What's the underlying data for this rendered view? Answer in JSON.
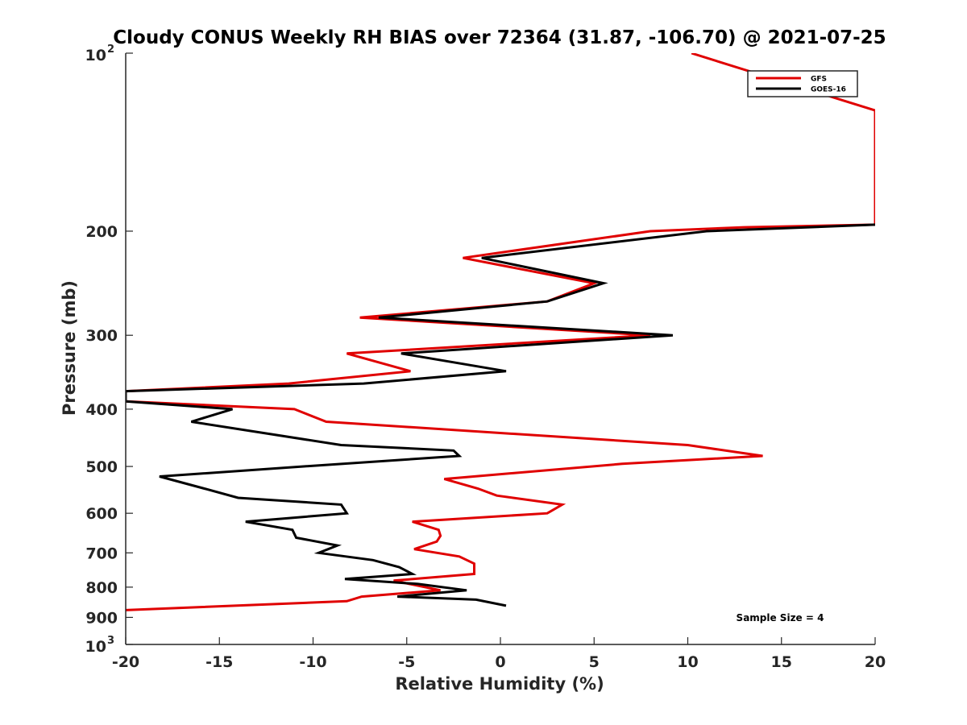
{
  "chart_data": {
    "type": "line",
    "title": "Cloudy CONUS Weekly RH BIAS over 72364 (31.87, -106.70) @ 2021-07-25",
    "xlabel": "Relative Humidity (%)",
    "ylabel": "Pressure (mb)",
    "xlim": [
      -20,
      20
    ],
    "ylim": [
      100,
      1000
    ],
    "y_scale": "log",
    "y_reversed": true,
    "grid": false,
    "legend_position": "top-right",
    "x_ticks": [
      "-20",
      "-15",
      "-10",
      "-5",
      "0",
      "5",
      "10",
      "15",
      "20"
    ],
    "y_ticks": [
      {
        "value": 100,
        "base": "10",
        "exp": "2"
      },
      {
        "value": 200,
        "label": "200"
      },
      {
        "value": 300,
        "label": "300"
      },
      {
        "value": 400,
        "label": "400"
      },
      {
        "value": 500,
        "label": "500"
      },
      {
        "value": 600,
        "label": "600"
      },
      {
        "value": 700,
        "label": "700"
      },
      {
        "value": 800,
        "label": "800"
      },
      {
        "value": 900,
        "label": "900"
      },
      {
        "value": 1000,
        "base": "10",
        "exp": "3"
      }
    ],
    "annotation": "Sample Size = 4",
    "series": [
      {
        "name": "GFS",
        "color": "#e00000",
        "points": [
          [
            10.2,
            100
          ],
          [
            20,
            125
          ],
          [
            20,
            180
          ],
          [
            20,
            195
          ],
          [
            13,
            197
          ],
          [
            8,
            200
          ],
          [
            -2,
            222
          ],
          [
            5,
            245
          ],
          [
            2.5,
            263
          ],
          [
            -7.5,
            280
          ],
          [
            8,
            300
          ],
          [
            -8.2,
            322
          ],
          [
            -4.8,
            345
          ],
          [
            -11.3,
            362
          ],
          [
            -20,
            373
          ],
          [
            -20,
            388
          ],
          [
            -11,
            400
          ],
          [
            -9.3,
            420
          ],
          [
            10,
            460
          ],
          [
            14,
            480
          ],
          [
            6.5,
            495
          ],
          [
            -3,
            525
          ],
          [
            -1.2,
            545
          ],
          [
            -0.2,
            560
          ],
          [
            3.3,
            580
          ],
          [
            2.5,
            600
          ],
          [
            -4.7,
            620
          ],
          [
            -3.3,
            640
          ],
          [
            -3.2,
            655
          ],
          [
            -3.4,
            670
          ],
          [
            -4.6,
            690
          ],
          [
            -2.2,
            710
          ],
          [
            -1.4,
            730
          ],
          [
            -1.4,
            760
          ],
          [
            -5.7,
            780
          ],
          [
            -3.2,
            810
          ],
          [
            -7.4,
            830
          ],
          [
            -8.2,
            845
          ],
          [
            -20,
            875
          ]
        ]
      },
      {
        "name": "GOES-16",
        "color": "#000000",
        "points": [
          [
            20,
            195
          ],
          [
            11,
            200
          ],
          [
            -1,
            222
          ],
          [
            5.5,
            245
          ],
          [
            2.5,
            263
          ],
          [
            -6.5,
            280
          ],
          [
            9.2,
            300
          ],
          [
            -5.3,
            322
          ],
          [
            0.3,
            345
          ],
          [
            -7.3,
            362
          ],
          [
            -20,
            373
          ],
          [
            -20,
            388
          ],
          [
            -14.3,
            400
          ],
          [
            -16.5,
            420
          ],
          [
            -8.5,
            460
          ],
          [
            -2.5,
            470
          ],
          [
            -2.2,
            480
          ],
          [
            -10.5,
            500
          ],
          [
            -18.2,
            520
          ],
          [
            -15.8,
            545
          ],
          [
            -14,
            565
          ],
          [
            -8.5,
            580
          ],
          [
            -8.2,
            600
          ],
          [
            -13.6,
            620
          ],
          [
            -11.1,
            640
          ],
          [
            -10.9,
            660
          ],
          [
            -8.7,
            680
          ],
          [
            -9.7,
            700
          ],
          [
            -6.8,
            720
          ],
          [
            -5.4,
            740
          ],
          [
            -4.7,
            760
          ],
          [
            -8.3,
            775
          ],
          [
            -4.4,
            790
          ],
          [
            -1.8,
            810
          ],
          [
            -5.5,
            830
          ],
          [
            -1.3,
            840
          ],
          [
            0.3,
            860
          ]
        ]
      }
    ]
  }
}
